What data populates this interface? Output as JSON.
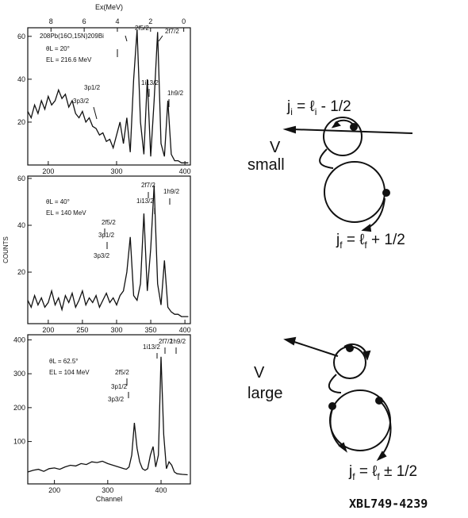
{
  "chart_data": [
    {
      "type": "line",
      "x2label": "Ex(MeV)",
      "x2lim": [
        9.4,
        -0.4
      ],
      "x2ticks": [
        8,
        6,
        4,
        2,
        0
      ],
      "annotations": [
        "208Pb(16O,15N)209Bi",
        "θL = 20°",
        "EL = 216.6 MeV",
        "3p3/2",
        "3p1/2",
        "2f5/2",
        "1i13/2",
        "2f7/2",
        "1h9/2"
      ],
      "x": [
        170,
        175,
        180,
        185,
        190,
        195,
        200,
        205,
        210,
        215,
        220,
        225,
        230,
        235,
        240,
        245,
        250,
        255,
        260,
        265,
        270,
        275,
        280,
        285,
        290,
        295,
        300,
        305,
        310,
        315,
        320,
        325,
        330,
        335,
        340,
        345,
        350,
        355,
        360,
        365,
        370,
        375,
        380,
        385,
        390,
        395,
        400,
        405
      ],
      "values": [
        25,
        22,
        28,
        24,
        30,
        26,
        32,
        28,
        30,
        35,
        31,
        33,
        27,
        30,
        24,
        22,
        25,
        20,
        22,
        18,
        17,
        14,
        15,
        11,
        12,
        8,
        14,
        20,
        10,
        22,
        6,
        40,
        63,
        20,
        5,
        40,
        4,
        30,
        62,
        10,
        4,
        30,
        5,
        2,
        2,
        1,
        1,
        1
      ],
      "color": "#111111",
      "xlim": [
        170,
        408
      ],
      "ylim": [
        0,
        64
      ],
      "xticks": [
        200,
        300,
        400
      ],
      "yticks": [
        20,
        40,
        60
      ]
    },
    {
      "type": "line",
      "ylabel": "COUNTS",
      "annotations": [
        "θL = 40°",
        "EL = 140 MeV",
        "2f5/2",
        "3p1/2",
        "3p3/2",
        "2f7/2",
        "1i13/2",
        "1h9/2"
      ],
      "x": [
        170,
        175,
        180,
        185,
        190,
        195,
        200,
        205,
        210,
        215,
        220,
        225,
        230,
        235,
        240,
        245,
        250,
        255,
        260,
        265,
        270,
        275,
        280,
        285,
        290,
        295,
        300,
        305,
        310,
        315,
        320,
        325,
        330,
        335,
        340,
        345,
        350,
        355,
        360,
        365,
        370,
        375,
        380,
        385,
        390,
        395,
        400,
        405
      ],
      "values": [
        8,
        5,
        10,
        6,
        9,
        5,
        7,
        12,
        6,
        9,
        4,
        10,
        7,
        11,
        5,
        8,
        12,
        6,
        9,
        7,
        10,
        5,
        8,
        11,
        7,
        9,
        6,
        10,
        12,
        20,
        35,
        10,
        8,
        15,
        45,
        12,
        30,
        57,
        15,
        6,
        25,
        5,
        3,
        2,
        2,
        1,
        1,
        1
      ],
      "color": "#111111",
      "xlim": [
        170,
        408
      ],
      "ylim": [
        -2,
        61
      ],
      "xticks": [
        200,
        250,
        300,
        350,
        400
      ],
      "yticks": [
        20,
        40,
        60
      ]
    },
    {
      "type": "line",
      "xlabel": "Channel",
      "annotations": [
        "θL = 62.5°",
        "EL = 104 MeV",
        "2f5/2",
        "3p1/2",
        "3p3/2",
        "1i13/2",
        "2f7/2",
        "1h9/2"
      ],
      "x": [
        150,
        160,
        170,
        180,
        190,
        200,
        210,
        220,
        230,
        240,
        250,
        260,
        270,
        280,
        290,
        300,
        310,
        320,
        330,
        335,
        340,
        345,
        350,
        355,
        360,
        365,
        370,
        375,
        380,
        385,
        390,
        395,
        400,
        405,
        410,
        415,
        420,
        425,
        430,
        440,
        450
      ],
      "values": [
        10,
        15,
        18,
        12,
        20,
        22,
        18,
        25,
        30,
        28,
        35,
        32,
        40,
        38,
        42,
        35,
        30,
        25,
        20,
        18,
        25,
        60,
        155,
        80,
        40,
        20,
        15,
        20,
        60,
        85,
        25,
        60,
        350,
        120,
        20,
        40,
        30,
        10,
        5,
        3,
        2
      ],
      "color": "#111111",
      "xlim": [
        150,
        455
      ],
      "ylim": [
        -25,
        415
      ],
      "xticks": [
        200,
        300,
        400
      ],
      "yticks": [
        100,
        200,
        300,
        400
      ]
    }
  ],
  "diagram": {
    "eq1": [
      "j",
      "i",
      " = ℓ",
      "i",
      " - 1/2"
    ],
    "v1": "V",
    "s1": "small",
    "eq2": [
      "j",
      "f",
      " = ℓ",
      "f",
      " + 1/2"
    ],
    "v2": "V",
    "s2": "large",
    "eq3": [
      "j",
      "f",
      " = ℓ",
      "f",
      " ± 1/2"
    ]
  },
  "figure_id": "XBL749-4239"
}
